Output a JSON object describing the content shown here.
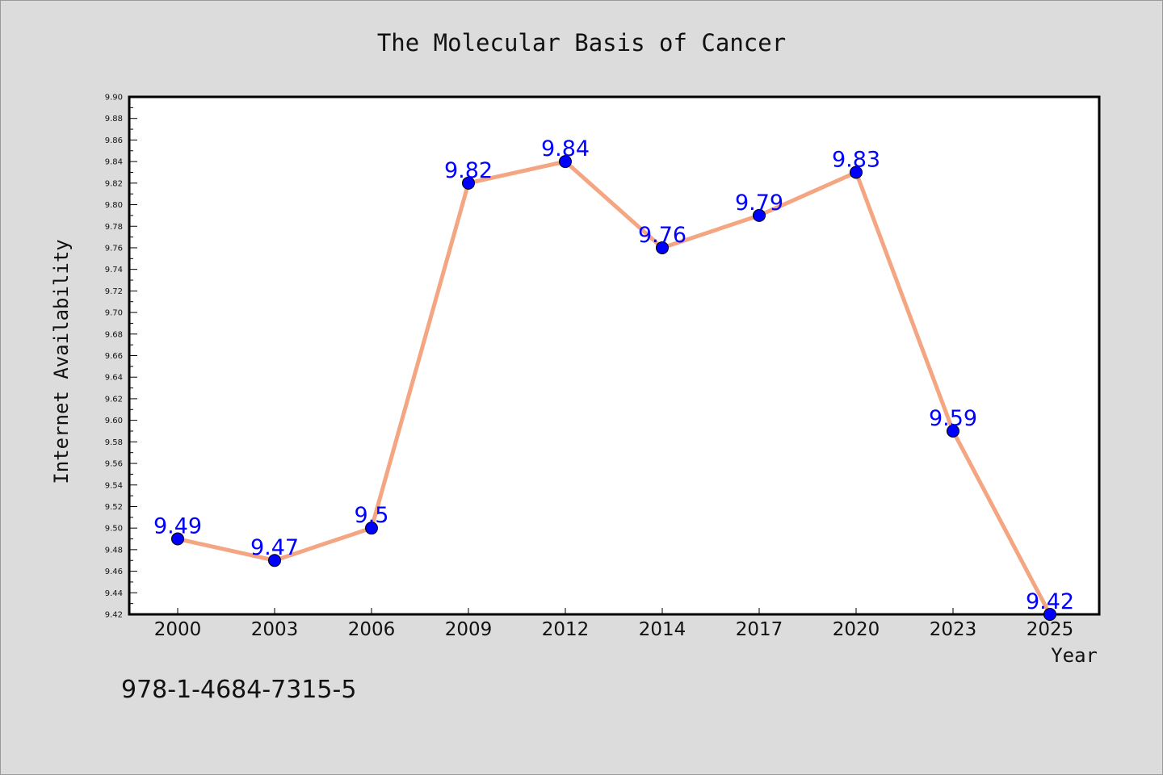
{
  "chart_data": {
    "type": "line",
    "title": "The Molecular Basis of Cancer",
    "xlabel": "Year",
    "ylabel": "Internet Availability",
    "categories": [
      "2000",
      "2003",
      "2006",
      "2009",
      "2012",
      "2014",
      "2017",
      "2020",
      "2023",
      "2025"
    ],
    "series": [
      {
        "values": [
          9.49,
          9.47,
          9.5,
          9.82,
          9.84,
          9.76,
          9.79,
          9.83,
          9.59,
          9.42
        ],
        "data_labels": [
          "9.49",
          "9.47",
          "9.5",
          "9.82",
          "9.84",
          "9.76",
          "9.79",
          "9.83",
          "9.59",
          "9.42"
        ],
        "line_color": "#f4a582",
        "marker_color": "#0000ff"
      }
    ],
    "ylim": [
      9.42,
      9.9
    ],
    "ytick_step": 0.02,
    "yticks": [
      "9.42",
      "9.44",
      "9.46",
      "9.48",
      "9.50",
      "9.52",
      "9.54",
      "9.56",
      "9.58",
      "9.60",
      "9.62",
      "9.64",
      "9.66",
      "9.68",
      "9.70",
      "9.72",
      "9.74",
      "9.76",
      "9.78",
      "9.80",
      "9.82",
      "9.84",
      "9.86",
      "9.88",
      "9.90"
    ],
    "grid": false,
    "legend": "none"
  },
  "footnote": "978-1-4684-7315-5",
  "colors": {
    "background": "#dcdcdc",
    "plot_background": "#ffffff",
    "line": "#f4a582",
    "marker": "#0000ff",
    "data_label": "#0000ff"
  }
}
